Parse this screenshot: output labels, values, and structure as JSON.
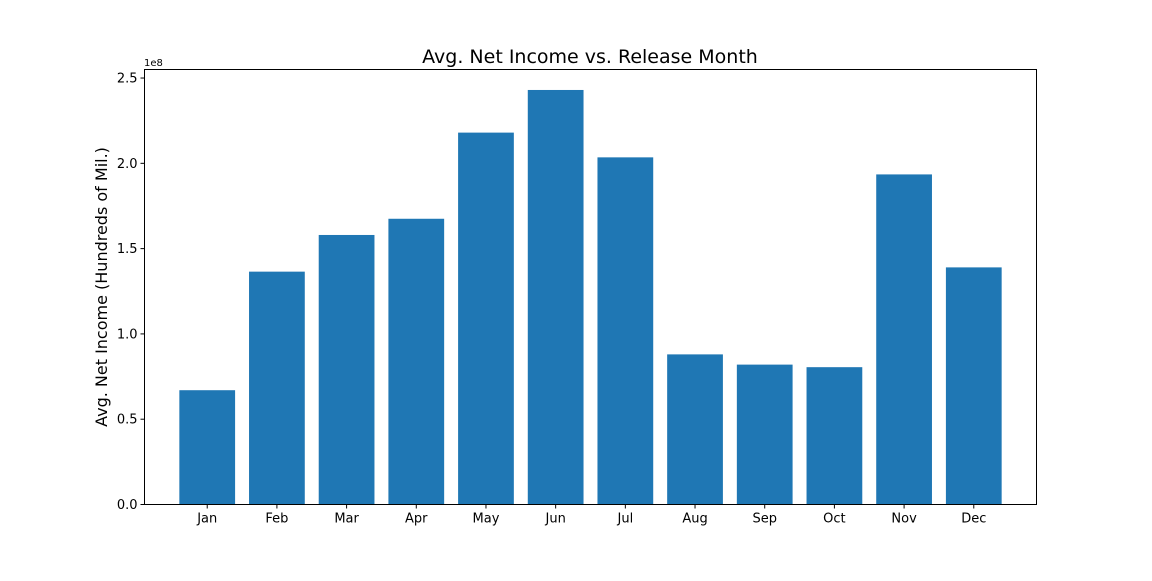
{
  "chart_data": {
    "type": "bar",
    "title": "Avg. Net Income vs. Release Month",
    "xlabel": "",
    "ylabel": "Avg. Net Income (Hundreds of Mil.)",
    "y_offset_label": "1e8",
    "categories": [
      "Jan",
      "Feb",
      "Mar",
      "Apr",
      "May",
      "Jun",
      "Jul",
      "Aug",
      "Sep",
      "Oct",
      "Nov",
      "Dec"
    ],
    "values": [
      67000000,
      136500000,
      158000000,
      167500000,
      218000000,
      243000000,
      203500000,
      88000000,
      82000000,
      80500000,
      193500000,
      139000000
    ],
    "ylim": [
      0,
      255000000
    ],
    "yticks": [
      0,
      50000000,
      100000000,
      150000000,
      200000000,
      250000000
    ],
    "ytick_labels": [
      "0.0",
      "0.5",
      "1.0",
      "1.5",
      "2.0",
      "2.5"
    ],
    "bar_color": "#1f77b4",
    "grid": false,
    "legend": "none"
  }
}
